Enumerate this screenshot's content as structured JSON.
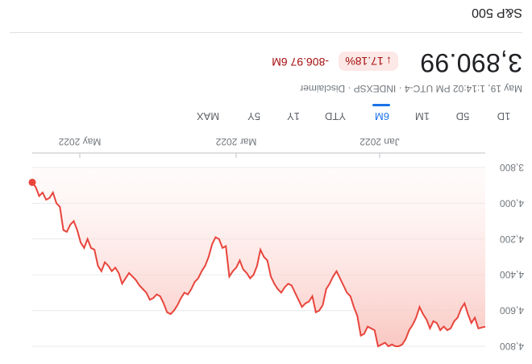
{
  "header": {
    "title": "S&P 500",
    "price": "3,890.99",
    "change_percent": "17.18%",
    "change_arrow": "↓",
    "change_value": "-806.97 6M",
    "meta": "May 19, 1:14:02 PM UTC-4 · INDEXSP · Disclaimer"
  },
  "tabs": {
    "items": [
      "1D",
      "5D",
      "1M",
      "6M",
      "YTD",
      "1Y",
      "5Y",
      "MAX"
    ],
    "selected": "6M"
  },
  "colors": {
    "line": "#e8453c",
    "negative": "#a50e0e",
    "badge_bg": "#fce8e6",
    "accent": "#1a73e8"
  },
  "chart_data": {
    "type": "area",
    "xlabels": [
      "Jan 2022",
      "Mar 2022",
      "May 2022"
    ],
    "ylabels": [
      "4,800",
      "4,600",
      "4,400",
      "4,200",
      "4,000",
      "3,800"
    ],
    "ylim": [
      3800,
      4800
    ],
    "grid": true,
    "values": [
      4690,
      4695,
      4700,
      4640,
      4670,
      4620,
      4560,
      4590,
      4640,
      4660,
      4700,
      4710,
      4690,
      4710,
      4670,
      4660,
      4700,
      4650,
      4620,
      4580,
      4640,
      4680,
      4710,
      4760,
      4790,
      4800,
      4800,
      4790,
      4800,
      4780,
      4790,
      4800,
      4710,
      4700,
      4690,
      4730,
      4740,
      4630,
      4580,
      4520,
      4500,
      4460,
      4420,
      4380,
      4410,
      4450,
      4480,
      4570,
      4600,
      4610,
      4520,
      4550,
      4560,
      4580,
      4540,
      4500,
      4460,
      4450,
      4470,
      4500,
      4480,
      4450,
      4410,
      4320,
      4300,
      4260,
      4350,
      4400,
      4420,
      4390,
      4370,
      4320,
      4360,
      4380,
      4410,
      4240,
      4250,
      4200,
      4190,
      4230,
      4300,
      4350,
      4380,
      4420,
      4440,
      4480,
      4510,
      4500,
      4530,
      4570,
      4600,
      4620,
      4610,
      4560,
      4520,
      4510,
      4530,
      4540,
      4500,
      4480,
      4460,
      4430,
      4410,
      4390,
      4420,
      4450,
      4390,
      4360,
      4380,
      4350,
      4330,
      4380,
      4350,
      4260,
      4250,
      4200,
      4250,
      4220,
      4150,
      4100,
      4120,
      4160,
      4150,
      4020,
      4000,
      3940,
      3970,
      3980,
      3940,
      3960,
      3910,
      3883
    ],
    "last_value": 3890.99
  }
}
